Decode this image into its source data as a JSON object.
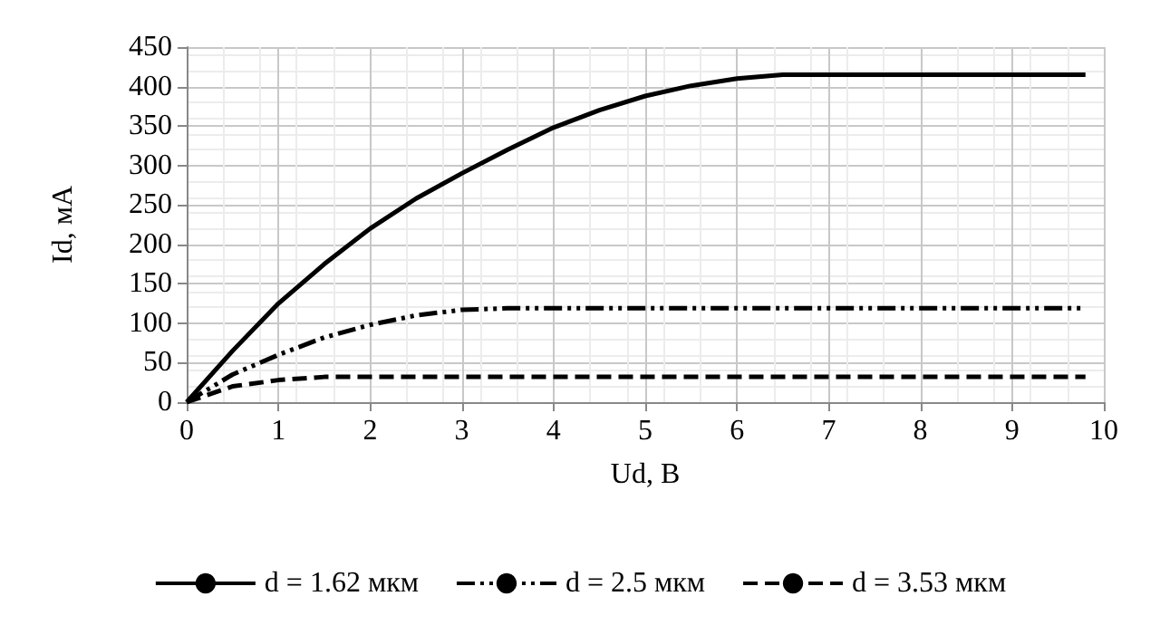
{
  "chart_data": {
    "type": "line",
    "xlabel": "Ud, В",
    "ylabel": "Id, мА",
    "xlim": [
      0,
      10
    ],
    "xticks": [
      0,
      1,
      2,
      3,
      4,
      5,
      6,
      7,
      8,
      9,
      10
    ],
    "ylim": [
      0,
      450
    ],
    "yticks": [
      0,
      50,
      100,
      150,
      200,
      250,
      300,
      350,
      400,
      450
    ],
    "grid": true,
    "legend": "bottom",
    "marker": "none",
    "series": [
      {
        "name": "d = 1.62 мкм",
        "color": "#000000",
        "line_style": "solid",
        "x": [
          0,
          0.5,
          1,
          1.5,
          2,
          2.5,
          3,
          3.5,
          4,
          4.5,
          5,
          5.5,
          6,
          6.5,
          7,
          8,
          9,
          9.8
        ],
        "values": [
          0,
          65,
          125,
          175,
          220,
          258,
          290,
          320,
          348,
          370,
          388,
          401,
          410,
          415,
          415,
          415,
          415,
          415
        ]
      },
      {
        "name": "d = 2.5 мкм",
        "color": "#000000",
        "line_style": "dashdotdot",
        "x": [
          0,
          0.5,
          1,
          1.5,
          2,
          2.5,
          3,
          3.5,
          4,
          5,
          6,
          7,
          8,
          9,
          9.8
        ],
        "values": [
          0,
          35,
          60,
          82,
          98,
          110,
          117,
          119,
          119,
          119,
          119,
          119,
          119,
          119,
          119
        ]
      },
      {
        "name": "d = 3.53 мкм",
        "color": "#000000",
        "line_style": "dashed",
        "x": [
          0,
          0.5,
          1,
          1.5,
          2,
          3,
          4,
          5,
          6,
          7,
          8,
          9,
          9.8
        ],
        "values": [
          0,
          20,
          28,
          32,
          32,
          32,
          32,
          32,
          32,
          32,
          32,
          32,
          32
        ]
      }
    ]
  }
}
